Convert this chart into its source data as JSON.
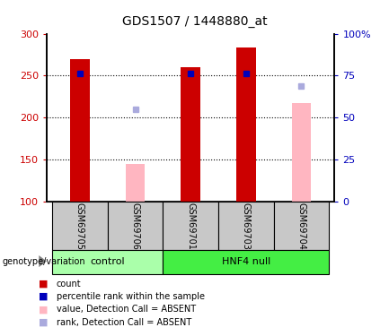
{
  "title": "GDS1507 / 1448880_at",
  "samples": [
    "GSM69705",
    "GSM69706",
    "GSM69701",
    "GSM69703",
    "GSM69704"
  ],
  "groups": [
    "control",
    "control",
    "HNF4 null",
    "HNF4 null",
    "HNF4 null"
  ],
  "ylim_left": [
    100,
    300
  ],
  "ylim_right": [
    0,
    100
  ],
  "yticks_left": [
    100,
    150,
    200,
    250,
    300
  ],
  "ytick_labels_right": [
    "0",
    "25",
    "50",
    "75",
    "100%"
  ],
  "red_bars": [
    270,
    null,
    260,
    284,
    null
  ],
  "pink_bars": [
    null,
    145,
    null,
    null,
    217
  ],
  "blue_squares": [
    253,
    null,
    253,
    253,
    null
  ],
  "light_blue_squares": [
    null,
    210,
    null,
    null,
    238
  ],
  "bar_width": 0.35,
  "red_color": "#CC0000",
  "pink_color": "#FFB6C1",
  "blue_color": "#0000BB",
  "light_blue_color": "#AAAADD",
  "axis_label_color_left": "#CC0000",
  "axis_label_color_right": "#0000BB",
  "xlabel_bg_color": "#C8C8C8",
  "control_color": "#AAFFAA",
  "hnf4_color": "#44EE44",
  "legend_items": [
    {
      "label": "count",
      "color": "#CC0000"
    },
    {
      "label": "percentile rank within the sample",
      "color": "#0000BB"
    },
    {
      "label": "value, Detection Call = ABSENT",
      "color": "#FFB6C1"
    },
    {
      "label": "rank, Detection Call = ABSENT",
      "color": "#AAAADD"
    }
  ]
}
